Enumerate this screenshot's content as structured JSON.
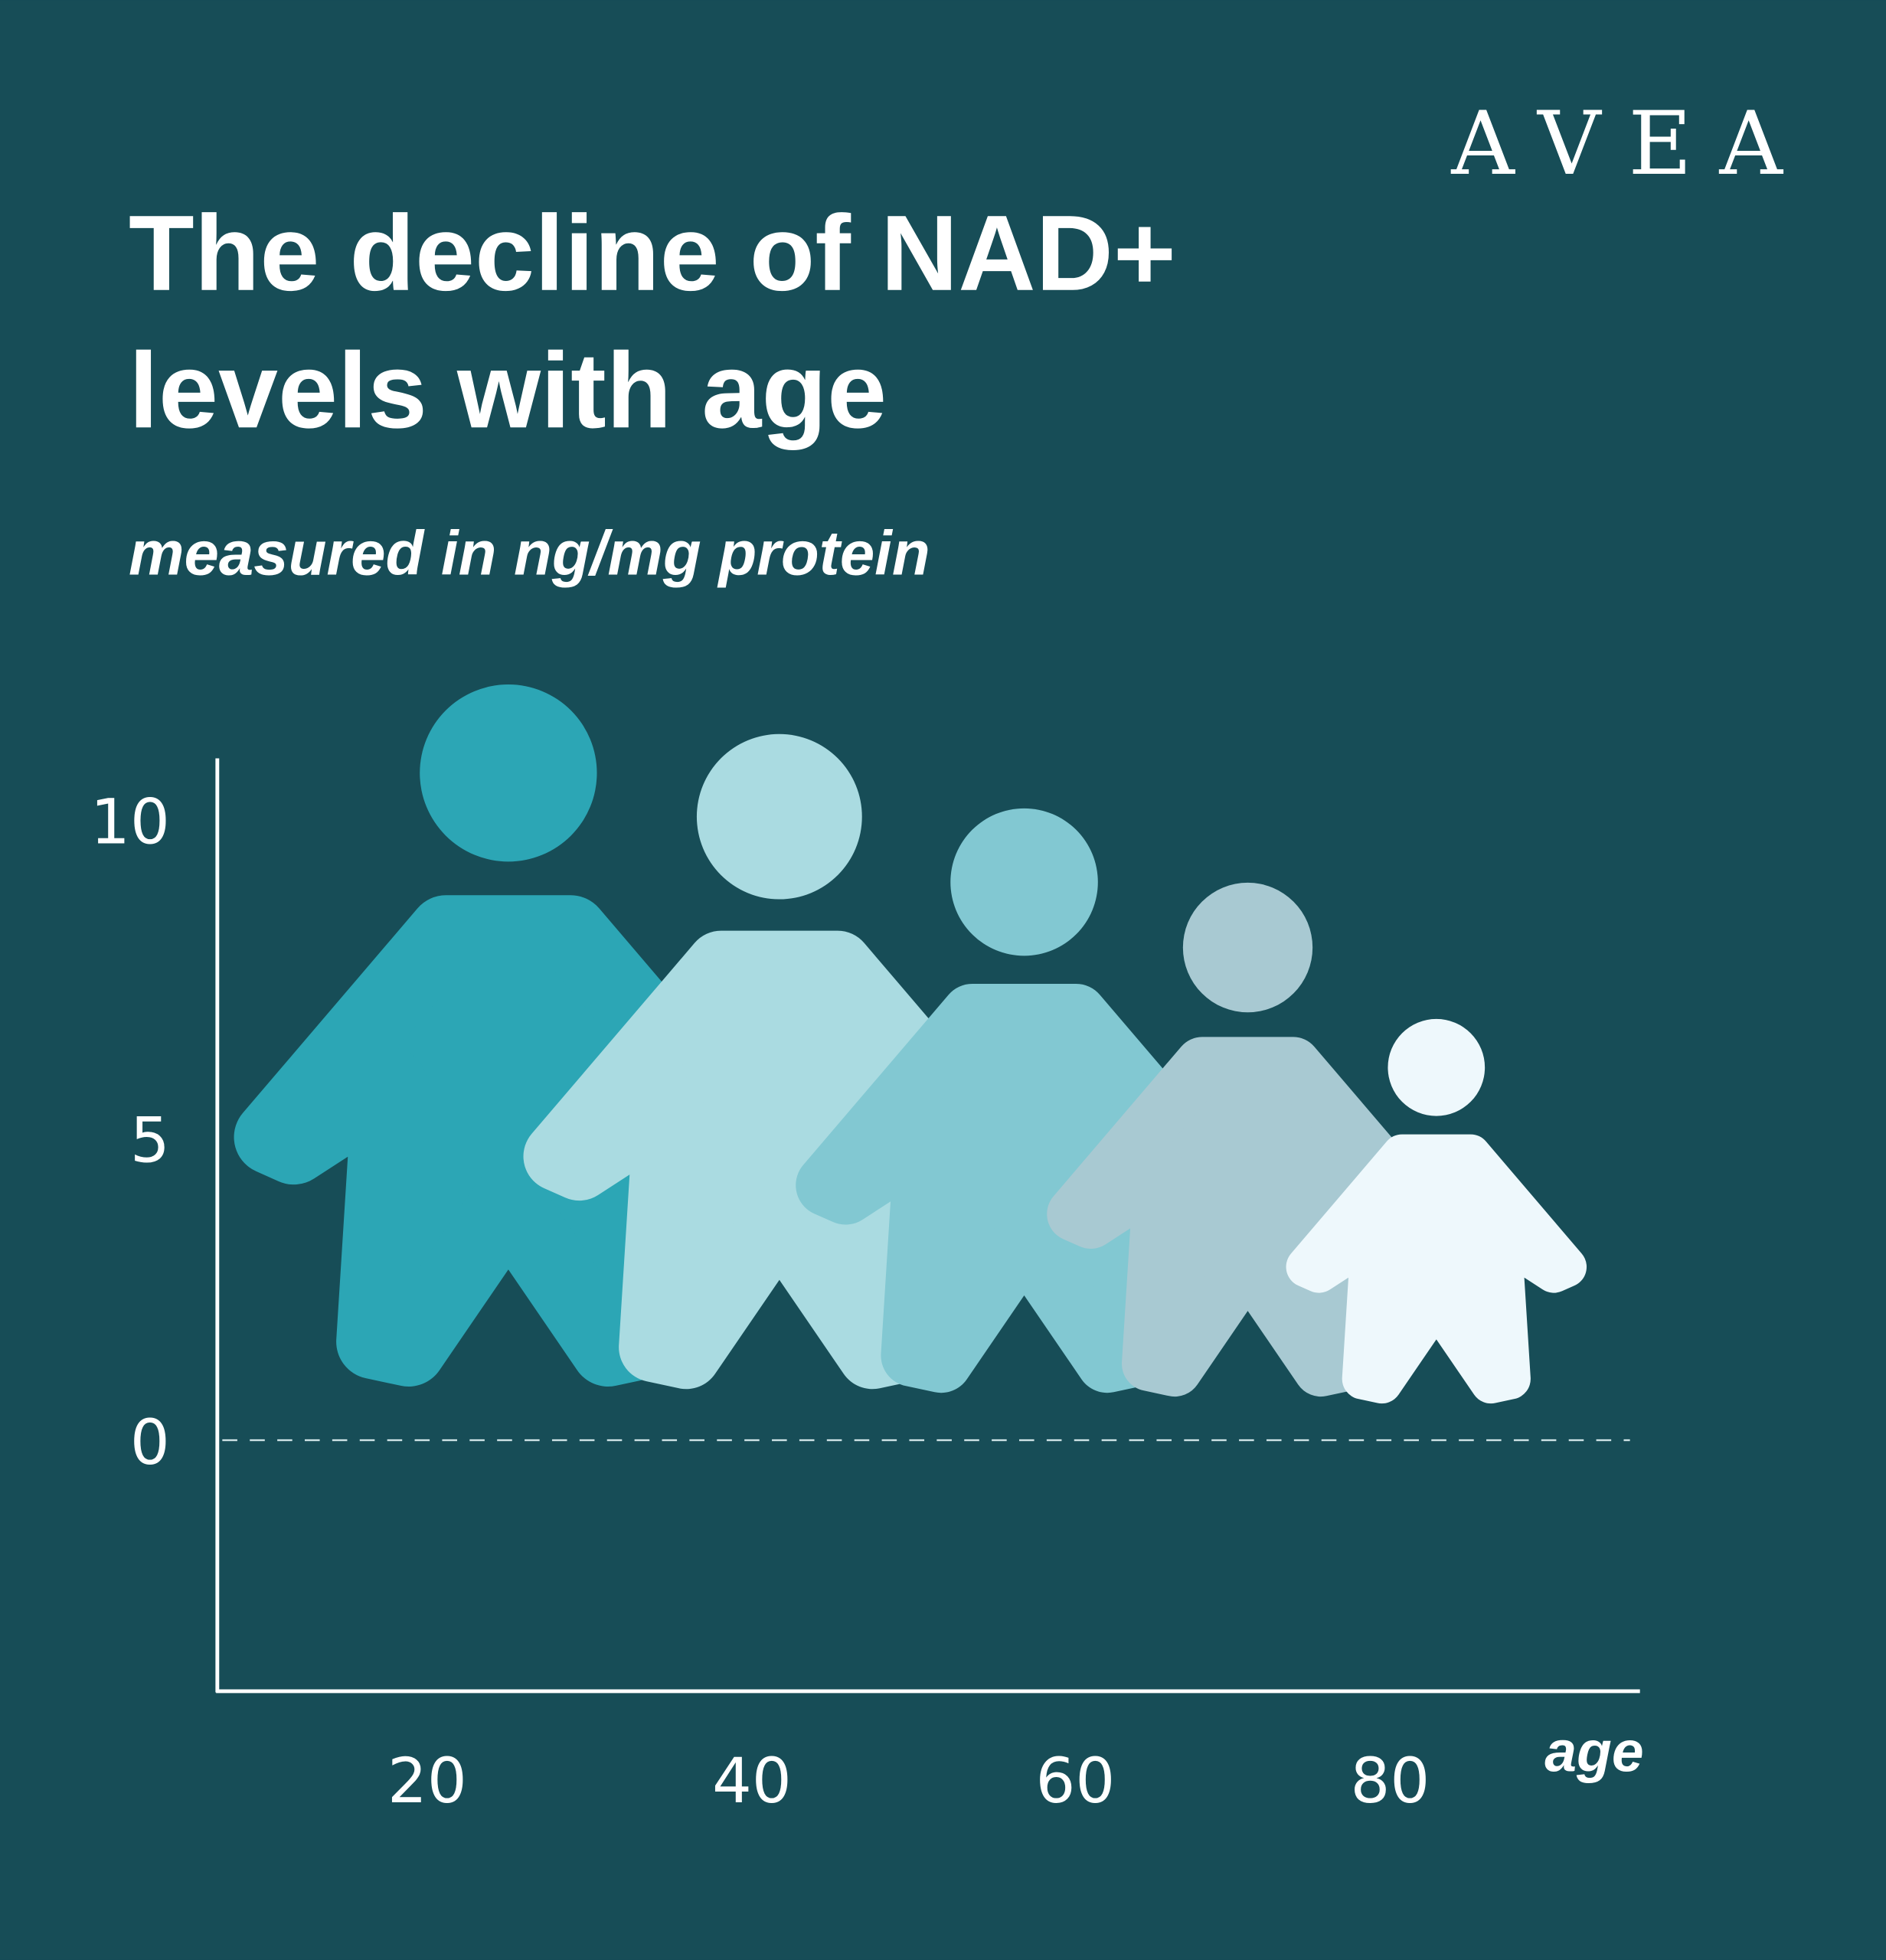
{
  "brand": {
    "logo_text": "AVEA"
  },
  "colors": {
    "background": "#174d57",
    "text": "#ffffff",
    "figures": [
      "#2ca6b5",
      "#aadbe1",
      "#82c8d2",
      "#a8c9d2",
      "#eef8fc"
    ]
  },
  "chart_data": {
    "type": "pictogram",
    "title": "The decline of NAD+ levels with age",
    "title_lines": [
      "The decline of NAD+",
      "levels with age"
    ],
    "subtitle": "measured in ng/mg protein",
    "xlabel": "age",
    "ylabel": "",
    "x_ticks": [
      "20",
      "40",
      "60",
      "80"
    ],
    "y_ticks": [
      "10",
      "5",
      "0"
    ],
    "ylim": [
      -4,
      11
    ],
    "zero_line": "dashed",
    "grid": false,
    "series": [
      {
        "values": [
          12.2,
          11.4,
          10.2,
          9.0,
          6.8
        ],
        "figure_icon": "person-icon"
      }
    ]
  }
}
